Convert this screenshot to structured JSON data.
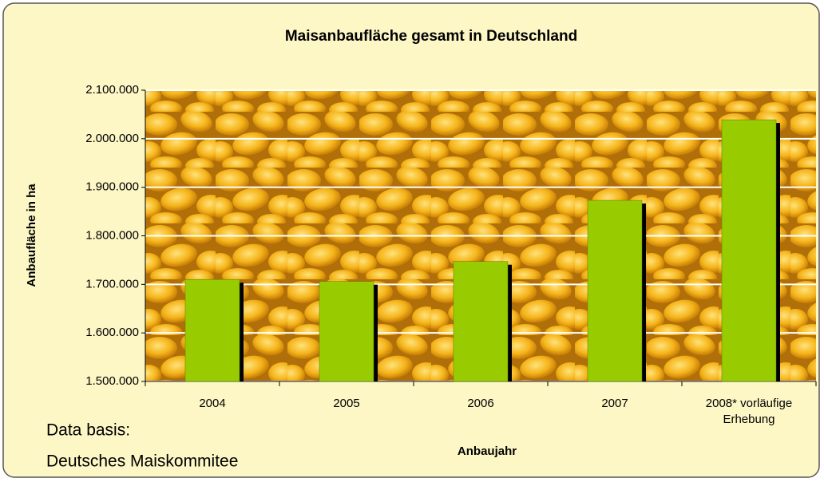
{
  "chart_data": {
    "type": "bar",
    "title": "Maisanbaufläche gesamt in Deutschland",
    "x_label": "Anbaujahr",
    "y_label": "Anbaufläche in ha",
    "notes": [
      "Data basis:",
      "Deutsches Maiskommitee"
    ],
    "categories": [
      "2004",
      "2005",
      "2006",
      "2007",
      "2008* vorläufige Erhebung"
    ],
    "values": [
      1710000,
      1706000,
      1747000,
      1873000,
      2039000
    ],
    "color": "#99cc00",
    "ylim": [
      1500000,
      2100000
    ],
    "yticks": [
      {
        "value": 1500000,
        "label": "1.500.000"
      },
      {
        "value": 1600000,
        "label": "1.600.000"
      },
      {
        "value": 1700000,
        "label": "1.700.000"
      },
      {
        "value": 1800000,
        "label": "1.800.000"
      },
      {
        "value": 1900000,
        "label": "1.900.000"
      },
      {
        "value": 2000000,
        "label": "2.000.000"
      },
      {
        "value": 2100000,
        "label": "2.100.000"
      }
    ],
    "grid": true
  }
}
